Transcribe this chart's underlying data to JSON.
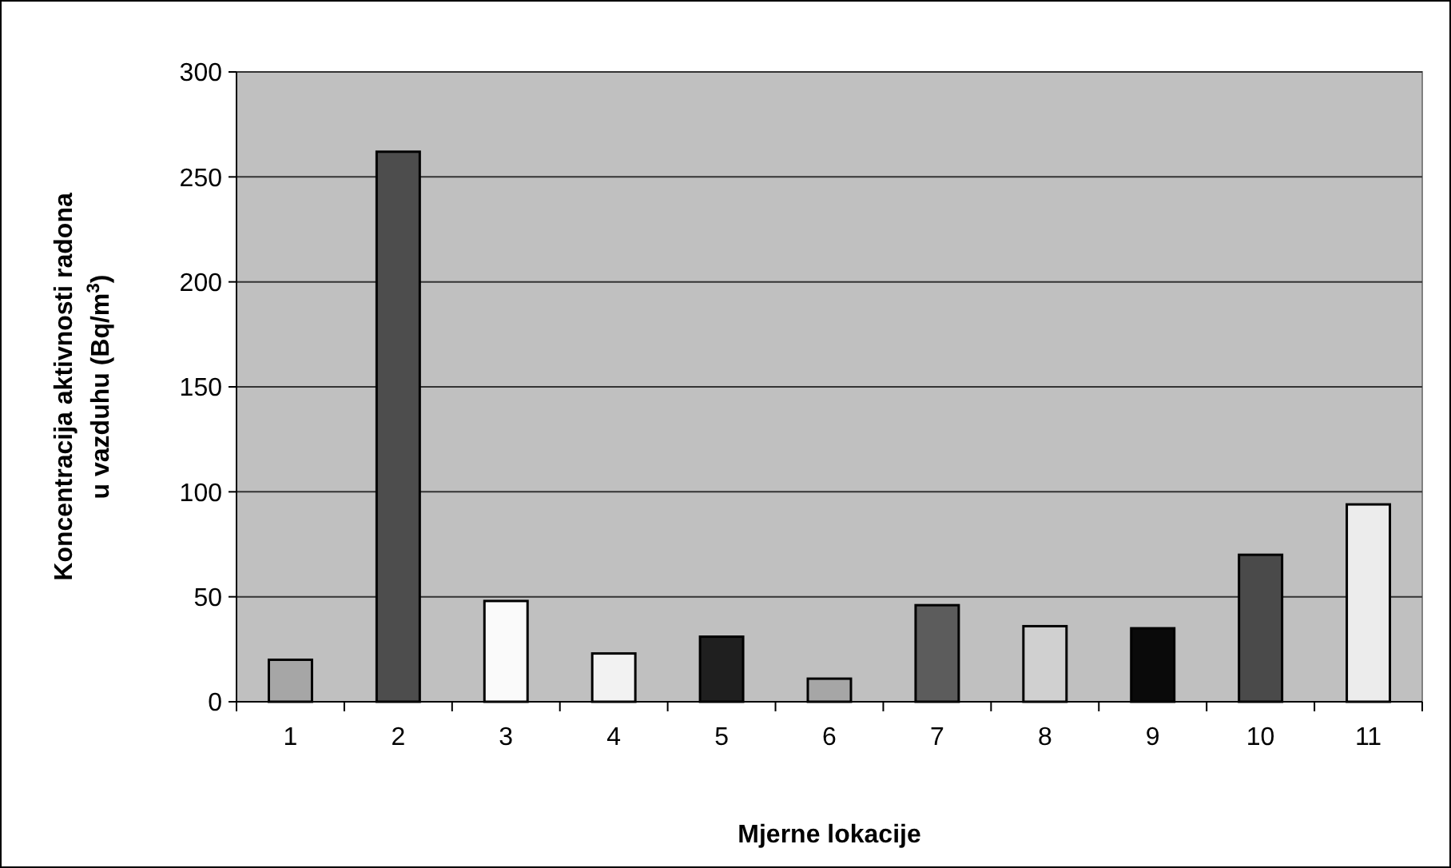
{
  "chart_data": {
    "type": "bar",
    "xlabel": "Mjerne lokacije",
    "ylabel": "Koncentracija aktivnosti radona\nu vazduhu  (Bq/m$^{3}$)",
    "categories": [
      "1",
      "2",
      "3",
      "4",
      "5",
      "6",
      "7",
      "8",
      "9",
      "10",
      "11"
    ],
    "values": [
      20,
      262,
      48,
      23,
      31,
      11,
      46,
      36,
      35,
      70,
      94
    ],
    "colors": [
      "#a6a6a6",
      "#4d4d4d",
      "#fafafa",
      "#f2f2f2",
      "#1f1f1f",
      "#a6a6a6",
      "#5c5c5c",
      "#d0d0d0",
      "#0a0a0a",
      "#4a4a4a",
      "#ececec"
    ],
    "ylim": [
      0,
      300
    ],
    "yticks": [
      0,
      50,
      100,
      150,
      200,
      250,
      300
    ],
    "grid": "y"
  }
}
